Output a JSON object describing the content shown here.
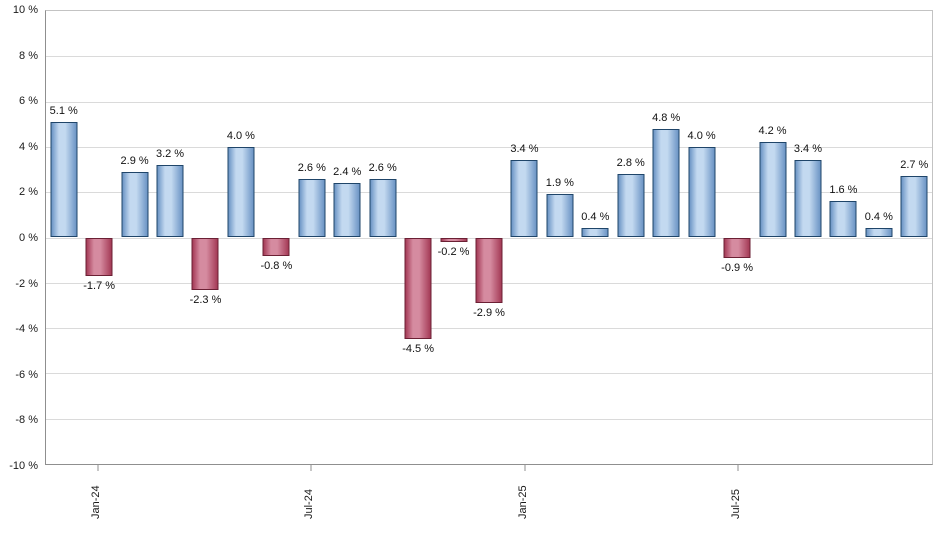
{
  "chart_data": {
    "type": "bar",
    "title": "",
    "xlabel": "",
    "ylabel": "",
    "ylim": [
      -10,
      10
    ],
    "grid": true,
    "legend": "none",
    "values": [
      5.1,
      -1.7,
      2.9,
      3.2,
      -2.3,
      4.0,
      -0.8,
      2.6,
      2.4,
      2.6,
      -4.5,
      -0.2,
      -2.9,
      3.4,
      1.9,
      0.4,
      2.8,
      4.8,
      4.0,
      -0.9,
      4.2,
      3.4,
      1.6,
      0.4,
      2.7
    ],
    "value_labels": [
      "5.1 %",
      "-1.7 %",
      "2.9 %",
      "3.2 %",
      "-2.3 %",
      "4.0 %",
      "-0.8 %",
      "2.6 %",
      "2.4 %",
      "2.6 %",
      "-4.5 %",
      "-0.2 %",
      "-2.9 %",
      "3.4 %",
      "1.9 %",
      "0.4 %",
      "2.8 %",
      "4.8 %",
      "4.0 %",
      "-0.9 %",
      "4.2 %",
      "3.4 %",
      "1.6 %",
      "0.4 %",
      "2.7 %"
    ],
    "y_ticks": [
      {
        "value": 10,
        "label": "10 %"
      },
      {
        "value": 8,
        "label": "8 %"
      },
      {
        "value": 6,
        "label": "6 %"
      },
      {
        "value": 4,
        "label": "4 %"
      },
      {
        "value": 2,
        "label": "2 %"
      },
      {
        "value": 0,
        "label": "0 %"
      },
      {
        "value": -2,
        "label": "-2 %"
      },
      {
        "value": -4,
        "label": "-4 %"
      },
      {
        "value": -6,
        "label": "-6 %"
      },
      {
        "value": -8,
        "label": "-8 %"
      },
      {
        "value": -10,
        "label": "-10 %"
      }
    ],
    "x_ticks": [
      {
        "index": 1,
        "label": "Jan-24"
      },
      {
        "index": 7,
        "label": "Jul-24"
      },
      {
        "index": 13,
        "label": "Jan-25"
      },
      {
        "index": 19,
        "label": "Jul-25"
      }
    ],
    "colors": {
      "positive_mid": "#c3d9f0",
      "positive_edge": "#6b94c4",
      "positive_border": "#1f4569",
      "negative_mid": "#d astray",
      "gridline": "#dadada"
    }
  }
}
